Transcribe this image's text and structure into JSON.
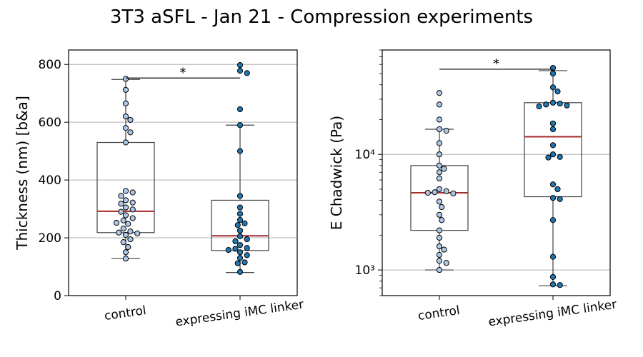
{
  "title": "3T3 aSFL - Jan 21 - Compression experiments",
  "colors": {
    "control": "#aec7e8",
    "expressing": "#1f77b4",
    "median": "#a52a2a",
    "grid": "#b0b0b0",
    "box": "#404040"
  },
  "chart_data": [
    {
      "type": "box+swarm",
      "ylabel": "Thickness (nm) [b&a]",
      "yscale": "linear",
      "ylim": [
        0,
        850
      ],
      "yticks": [
        0,
        200,
        400,
        600,
        800
      ],
      "ytick_labels": [
        "0",
        "200",
        "400",
        "600",
        "800"
      ],
      "grid": "horizontal",
      "categories": [
        "control",
        "expressing iMC linker"
      ],
      "significance": "*",
      "series": [
        {
          "category": "control",
          "box": {
            "whisker_low": 128,
            "q1": 218,
            "median": 292,
            "q3": 530,
            "whisker_high": 748
          },
          "points": [
            750,
            712,
            665,
            620,
            608,
            580,
            565,
            530,
            362,
            357,
            345,
            330,
            322,
            318,
            305,
            298,
            290,
            278,
            268,
            260,
            252,
            248,
            232,
            222,
            218,
            215,
            210,
            195,
            185,
            168,
            150,
            128
          ]
        },
        {
          "category": "expressing iMC linker",
          "box": {
            "whisker_low": 80,
            "q1": 156,
            "median": 207,
            "q3": 330,
            "whisker_high": 590
          },
          "points": [
            798,
            778,
            770,
            645,
            590,
            500,
            345,
            305,
            283,
            262,
            250,
            244,
            225,
            205,
            195,
            188,
            175,
            165,
            162,
            158,
            150,
            140,
            130,
            115,
            112,
            82
          ]
        }
      ]
    },
    {
      "type": "box+swarm",
      "ylabel": "E Chadwick (Pa)",
      "yscale": "log",
      "ylim": [
        600,
        80000
      ],
      "yticks": [
        1000,
        10000
      ],
      "ytick_labels": [
        "10³",
        "10⁴"
      ],
      "grid": "horizontal",
      "categories": [
        "control",
        "expressing iMC linker"
      ],
      "significance": "*",
      "series": [
        {
          "category": "control",
          "box": {
            "whisker_low": 1000,
            "q1": 2200,
            "median": 4650,
            "q3": 8000,
            "whisker_high": 16500
          },
          "points": [
            34000,
            27000,
            20000,
            16500,
            16000,
            12500,
            10000,
            8000,
            7500,
            7000,
            6200,
            5000,
            4800,
            4700,
            4650,
            4600,
            3900,
            3500,
            3000,
            2700,
            2200,
            1900,
            1600,
            1500,
            1350,
            1200,
            1150,
            1000
          ]
        },
        {
          "category": "expressing iMC linker",
          "box": {
            "whisker_low": 730,
            "q1": 4300,
            "median": 14200,
            "q3": 28000,
            "whisker_high": 53000
          },
          "points": [
            56000,
            50000,
            38000,
            35000,
            28000,
            27500,
            27000,
            26500,
            26000,
            18500,
            16500,
            12000,
            10000,
            9500,
            9400,
            5500,
            5000,
            4200,
            4100,
            2700,
            1300,
            870,
            750,
            740
          ]
        }
      ]
    }
  ]
}
